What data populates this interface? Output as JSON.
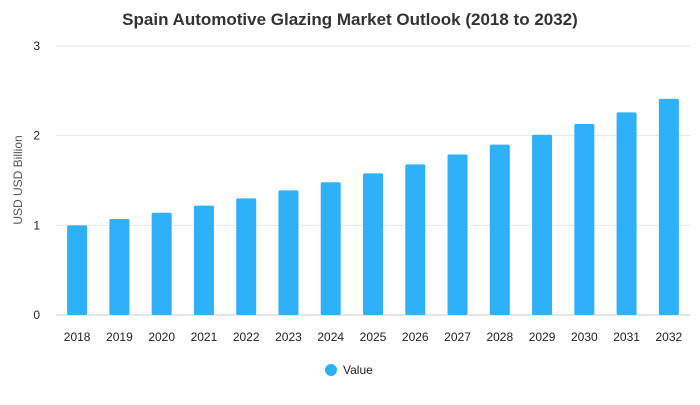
{
  "chart_data": {
    "type": "bar",
    "title": "Spain Automotive Glazing Market Outlook (2018 to 2032)",
    "ylabel": "USD USD Billion",
    "xlabel": "",
    "categories": [
      "2018",
      "2019",
      "2020",
      "2021",
      "2022",
      "2023",
      "2024",
      "2025",
      "2026",
      "2027",
      "2028",
      "2029",
      "2030",
      "2031",
      "2032"
    ],
    "series": [
      {
        "name": "Value",
        "color": "#2eb1f8",
        "values": [
          1.0,
          1.07,
          1.14,
          1.22,
          1.3,
          1.39,
          1.48,
          1.58,
          1.68,
          1.79,
          1.9,
          2.01,
          2.13,
          2.26,
          2.41
        ]
      }
    ],
    "ylim": [
      0,
      3
    ],
    "yticks": [
      "0",
      "1",
      "2",
      "3"
    ],
    "grid": true,
    "legend_position": "bottom"
  }
}
